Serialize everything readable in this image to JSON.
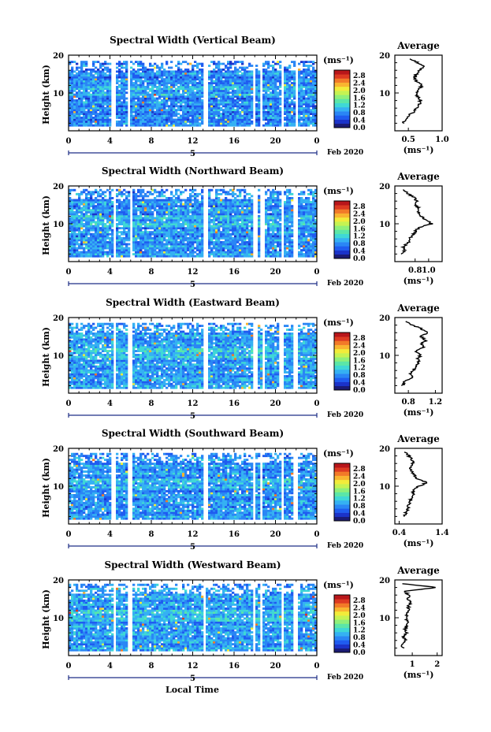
{
  "figure": {
    "xlabel": "Local Time",
    "date_label": "Feb 2020",
    "day_label": "5",
    "unit_label": "(ms⁻¹)",
    "avg_xlabel": "(ms⁻¹)",
    "avg_title": "Average",
    "ylabel": "Height (km)",
    "colormap": [
      "#1b1b74",
      "#1b33c9",
      "#1f5cf0",
      "#2a86f5",
      "#35b1f3",
      "#3fd8d6",
      "#5be6a8",
      "#8ff07a",
      "#c6f352",
      "#f2ec3a",
      "#f9b530",
      "#f27a28",
      "#dd3a22",
      "#b8161a"
    ],
    "data_gap_color": "#ffffff"
  },
  "chart_data": [
    {
      "type": "heatmap",
      "title": "Spectral Width (Vertical Beam)",
      "xlim": [
        0,
        24
      ],
      "ylim": [
        0,
        20
      ],
      "xticks": [
        "0",
        "4",
        "8",
        "12",
        "16",
        "20",
        "0"
      ],
      "yticks": [
        "10",
        "20"
      ],
      "colorbar": {
        "range": [
          0.0,
          2.8
        ],
        "ticks": [
          "2.8",
          "2.4",
          "2.0",
          "1.6",
          "1.2",
          "0.8",
          "0.4",
          "0.0"
        ]
      },
      "data_top_km": 18.5,
      "data_gaps_hours": [
        [
          4.2,
          4.5
        ],
        [
          5.7,
          6.0
        ],
        [
          13.1,
          13.5
        ],
        [
          17.9,
          18.1
        ],
        [
          18.5,
          18.8
        ],
        [
          20.6,
          20.8
        ],
        [
          21.9,
          22.2
        ]
      ],
      "typical_width": 0.7,
      "average_profile": {
        "xlim": [
          0.3,
          1.0
        ],
        "xticks": [
          "0.5",
          "1.0"
        ],
        "height_km": [
          2,
          3,
          4,
          5,
          6,
          7,
          8,
          9,
          10,
          11,
          12,
          13,
          14,
          15,
          16,
          17,
          18,
          19
        ],
        "value": [
          0.42,
          0.46,
          0.5,
          0.58,
          0.62,
          0.66,
          0.68,
          0.64,
          0.62,
          0.66,
          0.7,
          0.62,
          0.6,
          0.62,
          0.66,
          0.72,
          0.64,
          0.52
        ]
      }
    },
    {
      "type": "heatmap",
      "title": "Spectral Width (Northward Beam)",
      "xlim": [
        0,
        24
      ],
      "ylim": [
        0,
        20
      ],
      "xticks": [
        "0",
        "4",
        "8",
        "12",
        "16",
        "20",
        "0"
      ],
      "yticks": [
        "10",
        "20"
      ],
      "colorbar": {
        "range": [
          0.0,
          2.8
        ],
        "ticks": [
          "2.8",
          "2.4",
          "2.0",
          "1.6",
          "1.2",
          "0.8",
          "0.4",
          "0.0"
        ]
      },
      "data_top_km": 19.2,
      "data_gaps_hours": [
        [
          4.3,
          4.6
        ],
        [
          5.9,
          6.2
        ],
        [
          13.0,
          13.4
        ],
        [
          17.8,
          18.2
        ],
        [
          18.6,
          18.9
        ],
        [
          20.5,
          20.8
        ],
        [
          21.8,
          22.1
        ]
      ],
      "typical_width": 0.75,
      "average_profile": {
        "xlim": [
          0.5,
          1.2
        ],
        "xticks": [
          "0.8",
          "1.0"
        ],
        "height_km": [
          2,
          3,
          4,
          5,
          6,
          7,
          8,
          9,
          10,
          11,
          12,
          13,
          14,
          15,
          16,
          17,
          18,
          19
        ],
        "value": [
          0.6,
          0.64,
          0.62,
          0.7,
          0.72,
          0.76,
          0.8,
          0.86,
          1.04,
          0.96,
          0.88,
          0.84,
          0.86,
          0.8,
          0.82,
          0.78,
          0.7,
          0.62
        ]
      }
    },
    {
      "type": "heatmap",
      "title": "Spectral Width (Eastward Beam)",
      "xlim": [
        0,
        24
      ],
      "ylim": [
        0,
        20
      ],
      "xticks": [
        "0",
        "4",
        "8",
        "12",
        "16",
        "20",
        "0"
      ],
      "yticks": [
        "10",
        "20"
      ],
      "colorbar": {
        "range": [
          0.0,
          2.8
        ],
        "ticks": [
          "2.8",
          "2.4",
          "2.0",
          "1.6",
          "1.2",
          "0.8",
          "0.4",
          "0.0"
        ]
      },
      "data_top_km": 18.6,
      "data_gaps_hours": [
        [
          4.3,
          4.6
        ],
        [
          5.8,
          6.1
        ],
        [
          13.0,
          13.4
        ],
        [
          17.9,
          18.2
        ],
        [
          18.7,
          18.9
        ],
        [
          20.4,
          20.7
        ],
        [
          21.8,
          22.2
        ]
      ],
      "typical_width": 0.8,
      "average_profile": {
        "xlim": [
          0.6,
          1.3
        ],
        "xticks": [
          "0.8",
          "1.2"
        ],
        "height_km": [
          2,
          3,
          4,
          5,
          6,
          7,
          8,
          9,
          10,
          11,
          12,
          13,
          14,
          15,
          16,
          17,
          18,
          19
        ],
        "value": [
          0.72,
          0.74,
          0.86,
          0.82,
          0.88,
          0.92,
          0.96,
          0.94,
          0.98,
          0.9,
          1.02,
          1.0,
          1.06,
          0.98,
          1.08,
          1.0,
          0.86,
          0.76
        ]
      }
    },
    {
      "type": "heatmap",
      "title": "Spectral Width (Southward Beam)",
      "xlim": [
        0,
        24
      ],
      "ylim": [
        0,
        20
      ],
      "xticks": [
        "0",
        "4",
        "8",
        "12",
        "16",
        "20",
        "0"
      ],
      "yticks": [
        "10",
        "20"
      ],
      "colorbar": {
        "range": [
          0.0,
          2.8
        ],
        "ticks": [
          "2.8",
          "2.4",
          "2.0",
          "1.6",
          "1.2",
          "0.8",
          "0.4",
          "0.0"
        ]
      },
      "data_top_km": 18.8,
      "data_gaps_hours": [
        [
          4.2,
          4.6
        ],
        [
          5.8,
          6.1
        ],
        [
          13.0,
          13.4
        ],
        [
          17.8,
          18.1
        ],
        [
          18.5,
          18.8
        ],
        [
          20.6,
          20.9
        ],
        [
          21.8,
          22.1
        ]
      ],
      "typical_width": 0.75,
      "average_profile": {
        "xlim": [
          0.3,
          1.4
        ],
        "xticks": [
          "0.4",
          "1.4"
        ],
        "height_km": [
          2,
          3,
          4,
          5,
          6,
          7,
          8,
          9,
          10,
          11,
          12,
          13,
          14,
          15,
          16,
          17,
          18,
          19
        ],
        "value": [
          0.5,
          0.56,
          0.6,
          0.62,
          0.66,
          0.7,
          0.72,
          0.74,
          0.86,
          1.06,
          0.8,
          0.76,
          0.7,
          0.66,
          0.72,
          0.7,
          0.62,
          0.52
        ]
      }
    },
    {
      "type": "heatmap",
      "title": "Spectral Width (Westward Beam)",
      "xlim": [
        0,
        24
      ],
      "ylim": [
        0,
        20
      ],
      "xticks": [
        "0",
        "4",
        "8",
        "12",
        "16",
        "20",
        "0"
      ],
      "yticks": [
        "10",
        "20"
      ],
      "colorbar": {
        "range": [
          0.0,
          2.8
        ],
        "ticks": [
          "2.8",
          "2.4",
          "2.0",
          "1.6",
          "1.2",
          "0.8",
          "0.4",
          "0.0"
        ]
      },
      "data_top_km": 19.0,
      "data_gaps_hours": [
        [
          4.3,
          4.6
        ],
        [
          5.8,
          6.1
        ],
        [
          13.0,
          13.3
        ],
        [
          17.8,
          18.1
        ],
        [
          18.5,
          18.8
        ],
        [
          20.5,
          20.8
        ],
        [
          21.8,
          22.1
        ]
      ],
      "typical_width": 0.8,
      "average_profile": {
        "xlim": [
          0.3,
          2.2
        ],
        "xticks": [
          "1",
          "2"
        ],
        "height_km": [
          2,
          3,
          4,
          5,
          6,
          7,
          8,
          9,
          10,
          11,
          12,
          13,
          14,
          15,
          16,
          17,
          18,
          19
        ],
        "value": [
          0.62,
          0.58,
          0.74,
          0.66,
          0.8,
          0.72,
          0.78,
          0.82,
          0.76,
          0.8,
          0.88,
          0.84,
          0.92,
          0.8,
          0.86,
          0.7,
          2.0,
          0.6
        ]
      }
    }
  ]
}
